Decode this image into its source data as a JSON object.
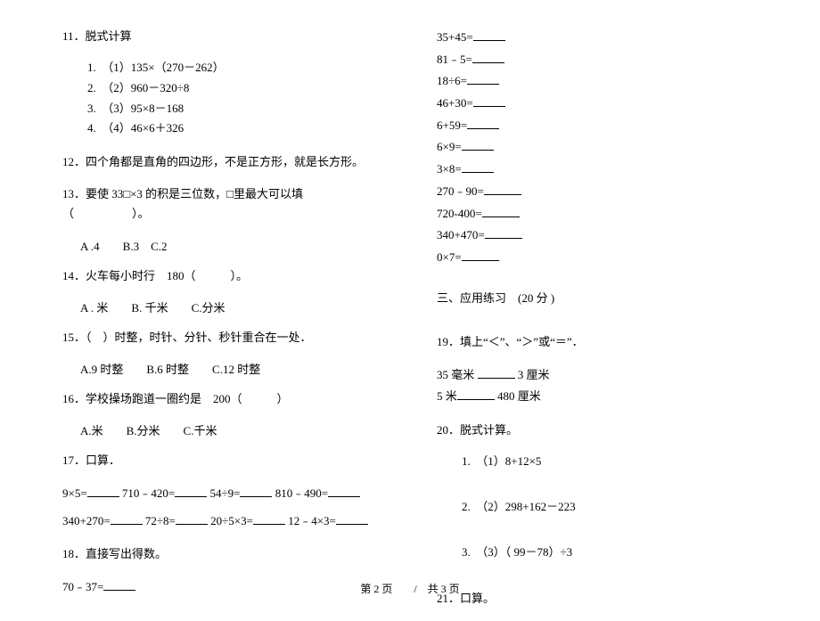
{
  "left": {
    "q11": {
      "title": "11．脱式计算",
      "items": [
        "1.　（1）135×（270－262）",
        "2.　（2）960－320÷8",
        "3.　（3）95×8－168",
        "4.　（4）46×6＋326"
      ]
    },
    "q12": "12．四个角都是直角的四边形，不是正方形，就是长方形。",
    "q13": {
      "title": "13．要使 33□×3 的积是三位数，□里最大可以填（　　　　　）。",
      "opts": "A .4　　B.3　C.2"
    },
    "q14": {
      "title": "14．火车每小时行　180（　　　）。",
      "opts": "A . 米　　B. 千米　　C.分米"
    },
    "q15": {
      "title": "15．（　）时整，时针、分针、秒针重合在一处．",
      "opts": "A.9 时整　　B.6 时整　　C.12 时整"
    },
    "q16": {
      "title": "16．学校操场跑道一圈约是　200（　　　）",
      "opts": "A.米　　B.分米　　C.千米"
    },
    "q17": {
      "title": "17．口算．",
      "line1a": "9×5=",
      "line1b": "710﹣420=",
      "line1c": "54÷9=",
      "line1d": "810﹣490=",
      "line2a": "340+270=",
      "line2b": "72÷8=",
      "line2c": "20÷5×3=",
      "line2d": "12﹣4×3="
    },
    "q18": {
      "title": "18．直接写出得数。",
      "line": "70﹣37="
    }
  },
  "right": {
    "calc": [
      "35+45=",
      "81﹣5=",
      "18÷6=",
      "46+30=",
      "6+59=",
      "6×9=",
      "3×8=",
      "270﹣90=",
      "720-400=",
      "340+470=",
      "0×7="
    ],
    "section": "三、应用练习　(20 分 )",
    "q19": {
      "title": "19．填上“＜”、“＞”或“＝”．",
      "l1a": "35 毫米",
      "l1b": "3 厘米",
      "l2a": "5 米",
      "l2b": "480 厘米"
    },
    "q20": {
      "title": "20．脱式计算。",
      "i1": "1.　（1）8+12×5",
      "i2": "2.　（2）298+162－223",
      "i3": "3.　（3）（ 99－78）÷3"
    },
    "q21": "21．口算。"
  },
  "footer": "第 2 页　　/　共 3 页"
}
